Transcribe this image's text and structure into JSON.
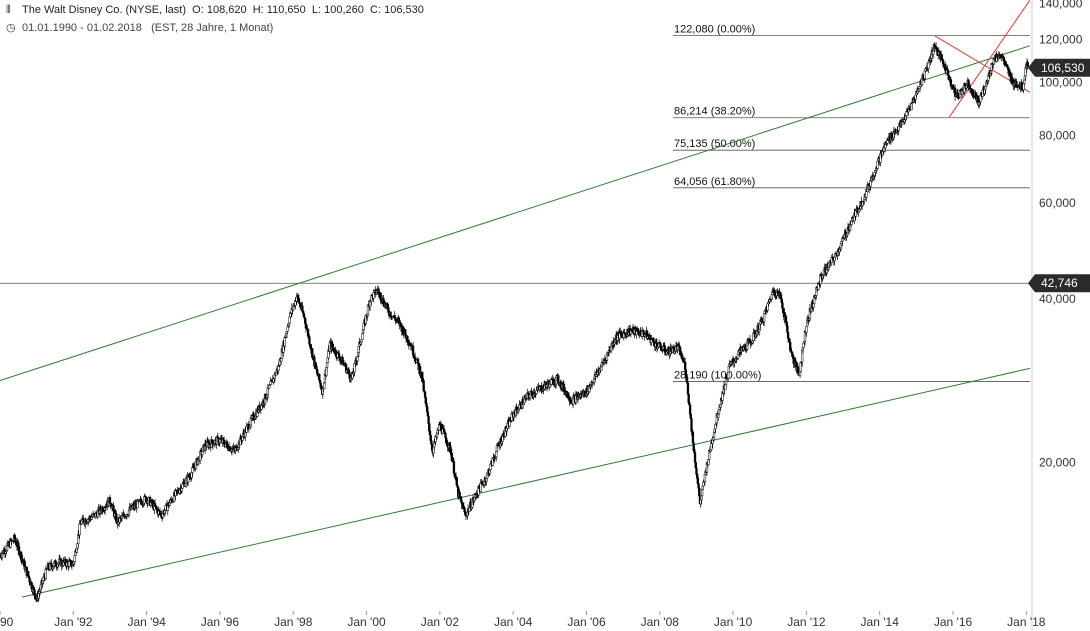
{
  "header": {
    "icon": "bar-chart-icon",
    "title": "The Walt Disney Co. (NYSE, last)",
    "ohlc": [
      {
        "label": "O:",
        "value": "108,620"
      },
      {
        "label": "H:",
        "value": "110,650"
      },
      {
        "label": "L:",
        "value": "100,260"
      },
      {
        "label": "C:",
        "value": "106,530"
      }
    ],
    "clock_icon": "clock-icon",
    "range": "01.01.1990 - 01.02.2018",
    "meta": "(EST, 28 Jahre, 1 Monat)"
  },
  "chart_data": {
    "type": "candlestick",
    "title": "The Walt Disney Co. (NYSE, last)",
    "xlabel": "",
    "ylabel": "",
    "scale": "log",
    "xlim": [
      1990.0,
      2018.1
    ],
    "ylim": [
      10700,
      142000
    ],
    "grid": false,
    "x_ticks": [
      "90",
      "Jan '92",
      "Jan '94",
      "Jan '96",
      "Jan '98",
      "Jan '00",
      "Jan '02",
      "Jan '04",
      "Jan '06",
      "Jan '08",
      "Jan '10",
      "Jan '12",
      "Jan '14",
      "Jan '16",
      "Jan '18"
    ],
    "y_ticks": [
      {
        "value": 140000,
        "label": "140,000"
      },
      {
        "value": 120000,
        "label": "120,000"
      },
      {
        "value": 100000,
        "label": "100,000"
      },
      {
        "value": 80000,
        "label": "80,000"
      },
      {
        "value": 60000,
        "label": "60,000"
      },
      {
        "value": 40000,
        "label": "40,000"
      },
      {
        "value": 20000,
        "label": "20,000"
      }
    ],
    "series": [
      {
        "points": [
          [
            1990.0,
            13500
          ],
          [
            1990.4,
            14500
          ],
          [
            1990.8,
            12200
          ],
          [
            1991.0,
            11200
          ],
          [
            1991.3,
            12800
          ],
          [
            1991.6,
            13100
          ],
          [
            1992.0,
            13000
          ],
          [
            1992.2,
            15500
          ],
          [
            1992.6,
            16000
          ],
          [
            1993.0,
            17000
          ],
          [
            1993.2,
            15500
          ],
          [
            1993.6,
            16500
          ],
          [
            1994.0,
            17200
          ],
          [
            1994.4,
            16000
          ],
          [
            1994.8,
            17500
          ],
          [
            1995.2,
            19000
          ],
          [
            1995.6,
            21500
          ],
          [
            1996.0,
            22000
          ],
          [
            1996.4,
            21000
          ],
          [
            1996.8,
            23500
          ],
          [
            1997.2,
            26000
          ],
          [
            1997.6,
            30000
          ],
          [
            1997.9,
            37000
          ],
          [
            1998.1,
            40500
          ],
          [
            1998.3,
            37000
          ],
          [
            1998.6,
            30000
          ],
          [
            1998.8,
            27000
          ],
          [
            1999.0,
            33000
          ],
          [
            1999.3,
            31000
          ],
          [
            1999.6,
            28500
          ],
          [
            1999.9,
            35000
          ],
          [
            2000.1,
            40000
          ],
          [
            2000.3,
            41500
          ],
          [
            2000.6,
            38000
          ],
          [
            2000.9,
            36000
          ],
          [
            2001.2,
            33000
          ],
          [
            2001.5,
            29000
          ],
          [
            2001.8,
            21000
          ],
          [
            2002.0,
            23500
          ],
          [
            2002.3,
            21000
          ],
          [
            2002.5,
            17500
          ],
          [
            2002.7,
            16000
          ],
          [
            2003.0,
            17500
          ],
          [
            2003.3,
            19000
          ],
          [
            2003.6,
            21500
          ],
          [
            2004.0,
            24500
          ],
          [
            2004.4,
            26500
          ],
          [
            2004.8,
            27500
          ],
          [
            2005.2,
            28500
          ],
          [
            2005.6,
            26000
          ],
          [
            2006.0,
            27000
          ],
          [
            2006.4,
            30000
          ],
          [
            2006.8,
            34000
          ],
          [
            2007.2,
            35000
          ],
          [
            2007.6,
            34500
          ],
          [
            2007.9,
            33000
          ],
          [
            2008.2,
            32000
          ],
          [
            2008.5,
            32500
          ],
          [
            2008.7,
            30000
          ],
          [
            2008.9,
            22000
          ],
          [
            2009.1,
            16800
          ],
          [
            2009.3,
            20000
          ],
          [
            2009.6,
            25000
          ],
          [
            2009.9,
            30000
          ],
          [
            2010.2,
            32000
          ],
          [
            2010.5,
            33500
          ],
          [
            2010.8,
            36500
          ],
          [
            2011.1,
            41500
          ],
          [
            2011.3,
            40500
          ],
          [
            2011.6,
            31500
          ],
          [
            2011.8,
            29000
          ],
          [
            2012.0,
            36000
          ],
          [
            2012.4,
            44000
          ],
          [
            2012.8,
            48000
          ],
          [
            2013.2,
            55000
          ],
          [
            2013.6,
            62000
          ],
          [
            2013.9,
            70000
          ],
          [
            2014.2,
            78000
          ],
          [
            2014.6,
            84000
          ],
          [
            2014.9,
            92000
          ],
          [
            2015.2,
            103000
          ],
          [
            2015.5,
            117000
          ],
          [
            2015.7,
            110000
          ],
          [
            2015.9,
            102000
          ],
          [
            2016.1,
            94000
          ],
          [
            2016.4,
            100000
          ],
          [
            2016.7,
            92000
          ],
          [
            2016.9,
            99000
          ],
          [
            2017.1,
            110000
          ],
          [
            2017.3,
            113000
          ],
          [
            2017.6,
            101000
          ],
          [
            2017.9,
            98000
          ],
          [
            2018.0,
            108000
          ]
        ]
      }
    ],
    "price_badges": [
      {
        "value": 106530,
        "label": "106,530"
      },
      {
        "value": 42746,
        "label": "42,746"
      }
    ],
    "fib_levels": [
      {
        "value": 122080,
        "label": "122,080 (0.00%)"
      },
      {
        "value": 86214,
        "label": "86,214 (38.20%)"
      },
      {
        "value": 75135,
        "label": "75,135 (50.00%)"
      },
      {
        "value": 64056,
        "label": "64,056 (61.80%)"
      },
      {
        "value": 28190,
        "label": "28,190 (100.00%)"
      }
    ],
    "horizontal_lines": [
      {
        "value": 42746
      }
    ],
    "trendlines": [
      {
        "color": "#2e7d32",
        "from": [
          1990.0,
          28300
        ],
        "to": [
          2018.1,
          117000
        ]
      },
      {
        "color": "#2e7d32",
        "from": [
          1990.6,
          11300
        ],
        "to": [
          2018.1,
          29800
        ]
      },
      {
        "color": "#e53935",
        "from": [
          2015.5,
          122000
        ],
        "to": [
          2018.1,
          96000
        ]
      },
      {
        "color": "#e53935",
        "from": [
          2015.9,
          86500
        ],
        "to": [
          2018.1,
          142000
        ]
      }
    ],
    "colors": {
      "price": "#000000",
      "support": "#2e7d32",
      "resistance": "#e53935",
      "badge": "#2b2b2b"
    }
  }
}
